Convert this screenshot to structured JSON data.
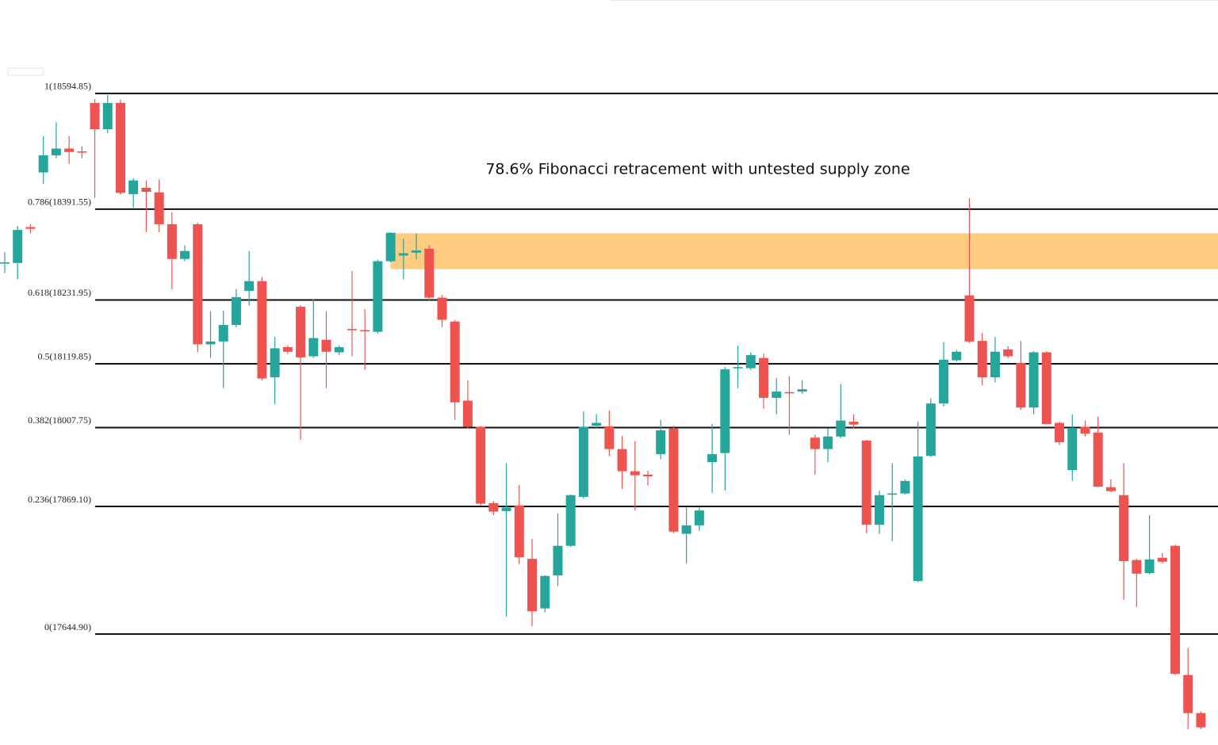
{
  "chart_data": {
    "type": "candlestick",
    "title": "78.6% Fibonacci retracement with untested supply zone",
    "ylim": [
      17450,
      18759
    ],
    "up_color": "#26a69a",
    "down_color": "#ef5350",
    "fib_levels": [
      {
        "value": 18594.85,
        "label": "1(18594.85)"
      },
      {
        "value": 18391.55,
        "label": "0.786(18391.55)"
      },
      {
        "value": 18231.95,
        "label": "0.618(18231.95)"
      },
      {
        "value": 18119.85,
        "label": "0.5(18119.85)"
      },
      {
        "value": 18007.75,
        "label": "0.382(18007.75)"
      },
      {
        "value": 17869.1,
        "label": "0.236(17869.10)"
      },
      {
        "value": 17644.9,
        "label": "0(17644.90)"
      }
    ],
    "supply_zone": {
      "high": 18349,
      "low": 18286,
      "color": "#ffc87a"
    },
    "open": [
      18297,
      18297,
      18360,
      18456,
      18486,
      18498,
      18493,
      18578,
      18532,
      18578,
      18418,
      18429,
      18421,
      18365,
      18304,
      18365,
      18154,
      18159,
      18188,
      18248,
      18265,
      18096,
      18149,
      18220,
      18133,
      18162,
      18140,
      18181,
      18179,
      18176,
      18300,
      18310,
      18315,
      18322,
      18236,
      18194,
      18055,
      18009,
      17875,
      17861,
      17871,
      17777,
      17690,
      17748,
      17800,
      17886,
      18011,
      18010,
      17970,
      17931,
      17925,
      17961,
      18006,
      17821,
      17836,
      17947,
      17963,
      18112,
      18112,
      18130,
      18060,
      18070,
      18071,
      17990,
      17970,
      17992,
      18018,
      17985,
      17837,
      17890,
      17892,
      17738,
      17958,
      18050,
      18126,
      18240,
      18160,
      18096,
      18145,
      18121,
      18043,
      18140,
      18016,
      17933,
      18009,
      17999,
      17903,
      17889,
      17775,
      17752,
      17779,
      17800,
      17573,
      17506
    ],
    "high": [
      18316,
      18362,
      18365,
      18520,
      18544,
      18520,
      18502,
      18585,
      18592,
      18584,
      18446,
      18442,
      18443,
      18386,
      18328,
      18368,
      18212,
      18213,
      18251,
      18318,
      18272,
      18167,
      18152,
      18223,
      18233,
      18212,
      18152,
      18283,
      18216,
      18303,
      18351,
      18340,
      18349,
      18328,
      18241,
      18197,
      18091,
      18011,
      17878,
      17945,
      17907,
      17812,
      17748,
      17857,
      17890,
      18036,
      18031,
      18038,
      17993,
      17984,
      17932,
      18021,
      18011,
      17867,
      17867,
      18014,
      18114,
      18152,
      18140,
      18138,
      18095,
      18098,
      18091,
      17995,
      18006,
      18084,
      18031,
      17986,
      17897,
      17945,
      17917,
      18018,
      18059,
      18158,
      18144,
      18411,
      18174,
      18167,
      18151,
      18160,
      18142,
      18142,
      18018,
      18031,
      18020,
      18027,
      17917,
      17945,
      17777,
      17854,
      17787,
      17802,
      17620,
      17509
    ],
    "low": [
      18279,
      18268,
      18349,
      18436,
      18481,
      18471,
      18481,
      18411,
      18525,
      18417,
      18394,
      18351,
      18351,
      18251,
      18300,
      18140,
      18130,
      18077,
      18184,
      18222,
      18091,
      18049,
      18137,
      17986,
      18130,
      18077,
      18135,
      18133,
      18109,
      18173,
      18298,
      18268,
      18303,
      18230,
      18184,
      18021,
      18006,
      17871,
      17854,
      17676,
      17768,
      17659,
      17683,
      17729,
      17798,
      17883,
      18007,
      17958,
      17900,
      17862,
      17906,
      17952,
      17822,
      17769,
      17826,
      17893,
      17897,
      18077,
      18109,
      18041,
      18031,
      17995,
      18067,
      17925,
      17947,
      17989,
      18007,
      17822,
      17821,
      17808,
      17890,
      17736,
      17956,
      18045,
      18124,
      18156,
      18082,
      18087,
      18130,
      18039,
      18031,
      18013,
      17977,
      17914,
      17992,
      17903,
      17894,
      17705,
      17692,
      17750,
      17769,
      17573,
      17478,
      17478
    ],
    "close": [
      18298,
      18355,
      18357,
      18486,
      18498,
      18492,
      18491,
      18532,
      18578,
      18420,
      18442,
      18422,
      18365,
      18304,
      18318,
      18154,
      18159,
      18188,
      18237,
      18265,
      18094,
      18147,
      18141,
      18131,
      18165,
      18141,
      18149,
      18180,
      18177,
      18300,
      18350,
      18314,
      18319,
      18236,
      18197,
      18052,
      18009,
      17874,
      17860,
      17867,
      17780,
      17685,
      17747,
      17800,
      17889,
      18009,
      18016,
      17970,
      17931,
      17924,
      17922,
      18003,
      17825,
      17836,
      17862,
      17961,
      18110,
      18114,
      18135,
      18060,
      18071,
      18069,
      18075,
      17970,
      17992,
      18020,
      18013,
      17837,
      17889,
      17892,
      17914,
      17957,
      18050,
      18127,
      18141,
      18159,
      18096,
      18141,
      18133,
      18043,
      18140,
      18014,
      17982,
      18007,
      17997,
      17904,
      17896,
      17773,
      17751,
      17776,
      17772,
      17575,
      17506,
      17481
    ]
  }
}
